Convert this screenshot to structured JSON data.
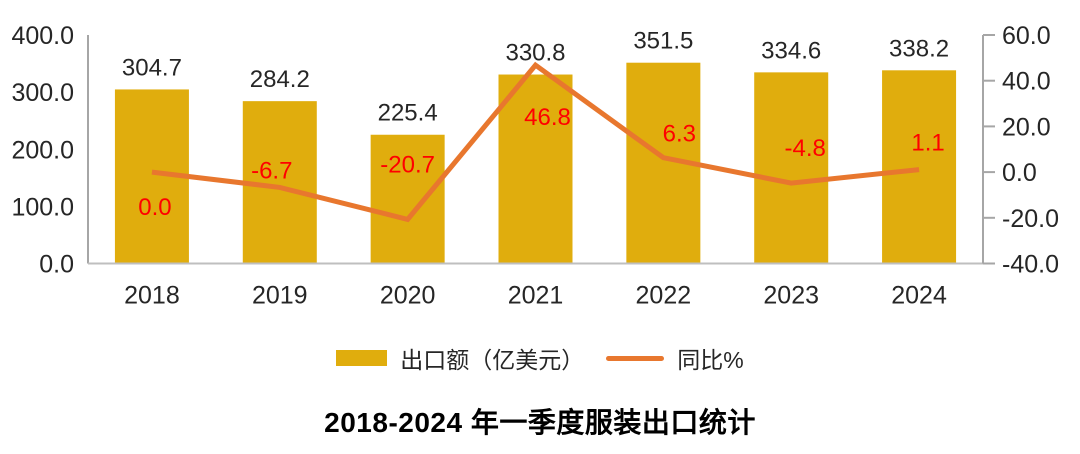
{
  "chart_data": {
    "type": "bar",
    "title": "2018-2024 年一季度服装出口统计",
    "categories": [
      "2018",
      "2019",
      "2020",
      "2021",
      "2022",
      "2023",
      "2024"
    ],
    "series": [
      {
        "name": "出口额（亿美元）",
        "type": "bar",
        "axis": "left",
        "color": "#E0AD0D",
        "label_color": "#262626",
        "values": [
          304.7,
          284.2,
          225.4,
          330.8,
          351.5,
          334.6,
          338.2
        ]
      },
      {
        "name": "同比%",
        "type": "line",
        "axis": "right",
        "color": "#E8772E",
        "label_color": "#FF0000",
        "values": [
          0.0,
          -6.7,
          -20.7,
          46.8,
          6.3,
          -4.8,
          1.1
        ]
      }
    ],
    "left_axis": {
      "min": 0,
      "max": 400,
      "tick_labels": [
        "400.0",
        "300.0",
        "200.0",
        "100.0",
        "0.0"
      ]
    },
    "right_axis": {
      "min": -40,
      "max": 60,
      "tick_labels": [
        "60.0",
        "40.0",
        "20.0",
        "0.0",
        "-20.0",
        "-40.0"
      ]
    },
    "legend_position": "bottom",
    "grid": false,
    "axis_line_color": "#A6A6A6",
    "bottom_line_color": "#BFBFBF"
  }
}
